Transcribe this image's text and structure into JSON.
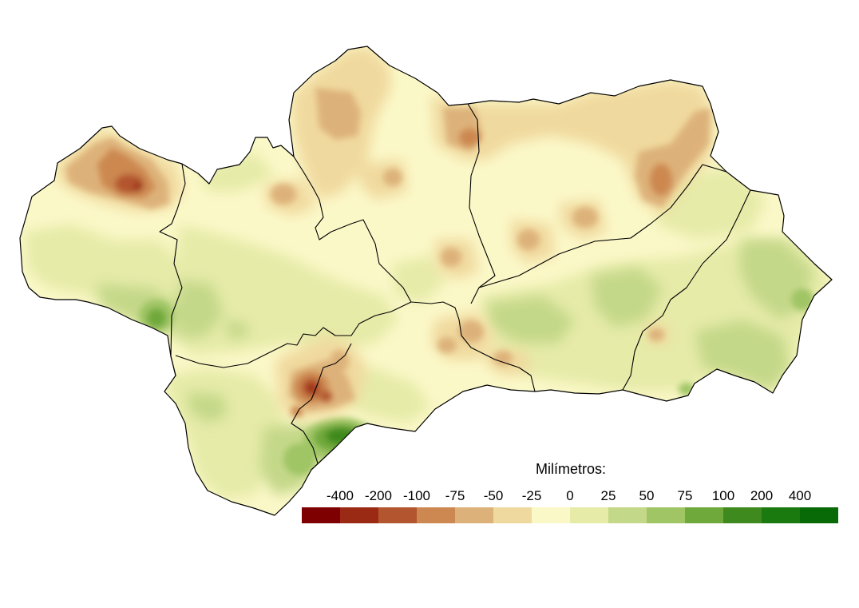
{
  "map": {
    "region_fill_base": "#f9f6c6",
    "boundary_color": "#000000"
  },
  "legend": {
    "title": "Milímetros:",
    "labels": [
      "-400",
      "-200",
      "-100",
      "-75",
      "-50",
      "-25",
      "0",
      "25",
      "50",
      "75",
      "100",
      "200",
      "400"
    ],
    "colors": [
      "#7f0000",
      "#9a2a14",
      "#b3552e",
      "#cc8850",
      "#ddb27a",
      "#f0d99e",
      "#fbf8c8",
      "#e6eba8",
      "#c4d889",
      "#9fc565",
      "#6fa83b",
      "#3e8a1f",
      "#1a7a0f",
      "#076a07"
    ]
  }
}
